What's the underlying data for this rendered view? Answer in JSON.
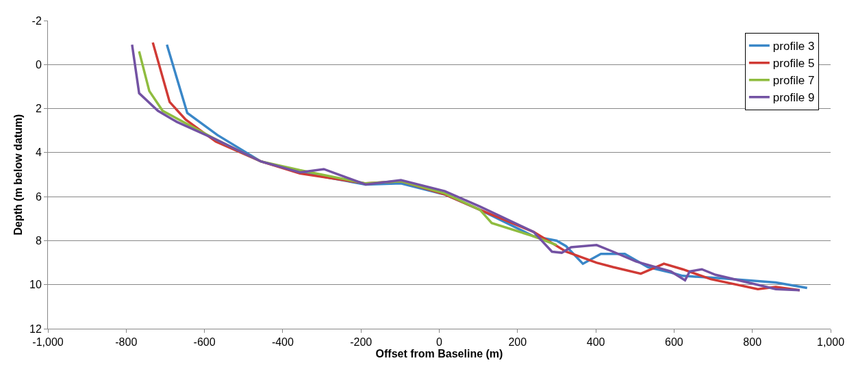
{
  "chart_data": {
    "type": "line",
    "xlabel": "Offset from Baseline (m)",
    "ylabel": "Depth (m below datum)",
    "xlim": [
      -1000,
      1000
    ],
    "ylim": [
      12,
      -2
    ],
    "xticks": [
      {
        "value": -1000,
        "label": "-1,000"
      },
      -800,
      -600,
      -400,
      -200,
      0,
      200,
      400,
      600,
      800,
      {
        "value": 1000,
        "label": "1,000"
      }
    ],
    "yticks": [
      -2,
      0,
      2,
      4,
      6,
      8,
      10,
      12
    ],
    "grid": "y",
    "legend": "top right",
    "marker": "none",
    "line_style": "solid",
    "series": [
      {
        "name": "profile 3",
        "color": "#3a87c8",
        "x": [
          -696,
          -644,
          -567,
          -456,
          -356,
          -188,
          -98,
          14,
          104,
          241,
          300,
          324,
          367,
          413,
          474,
          533,
          592,
          622,
          712,
          860,
          940
        ],
        "values": [
          -0.9,
          2.2,
          3.2,
          4.4,
          4.9,
          5.45,
          5.4,
          5.9,
          6.6,
          7.8,
          8.0,
          8.25,
          9.05,
          8.6,
          8.6,
          9.2,
          9.45,
          9.6,
          9.7,
          9.9,
          10.15
        ]
      },
      {
        "name": "profile 5",
        "color": "#d03a35",
        "x": [
          -732,
          -689,
          -648,
          -571,
          -456,
          -356,
          -188,
          -98,
          14,
          104,
          241,
          324,
          402,
          444,
          515,
          574,
          622,
          694,
          814,
          860,
          921
        ],
        "values": [
          -1.0,
          1.7,
          2.5,
          3.5,
          4.4,
          4.95,
          5.4,
          5.3,
          5.9,
          6.6,
          7.6,
          8.5,
          9.0,
          9.2,
          9.5,
          9.05,
          9.3,
          9.75,
          10.2,
          10.1,
          10.25
        ]
      },
      {
        "name": "profile 7",
        "color": "#8fbc3f",
        "x": [
          -767,
          -741,
          -707,
          -571,
          -456,
          -356,
          -188,
          -98,
          14,
          104,
          134,
          241,
          300
        ],
        "values": [
          -0.6,
          1.2,
          2.1,
          3.4,
          4.4,
          4.8,
          5.4,
          5.3,
          5.85,
          6.6,
          7.2,
          7.8,
          8.2
        ]
      },
      {
        "name": "profile 9",
        "color": "#7352a3",
        "x": [
          -785,
          -767,
          -719,
          -671,
          -571,
          -456,
          -356,
          -295,
          -188,
          -98,
          14,
          104,
          241,
          288,
          313,
          337,
          402,
          444,
          503,
          592,
          628,
          640,
          671,
          706,
          860,
          921
        ],
        "values": [
          -0.9,
          1.3,
          2.1,
          2.6,
          3.4,
          4.4,
          4.9,
          4.75,
          5.45,
          5.25,
          5.75,
          6.45,
          7.6,
          8.5,
          8.55,
          8.3,
          8.2,
          8.5,
          8.95,
          9.4,
          9.8,
          9.4,
          9.3,
          9.55,
          10.2,
          10.25
        ]
      }
    ]
  }
}
